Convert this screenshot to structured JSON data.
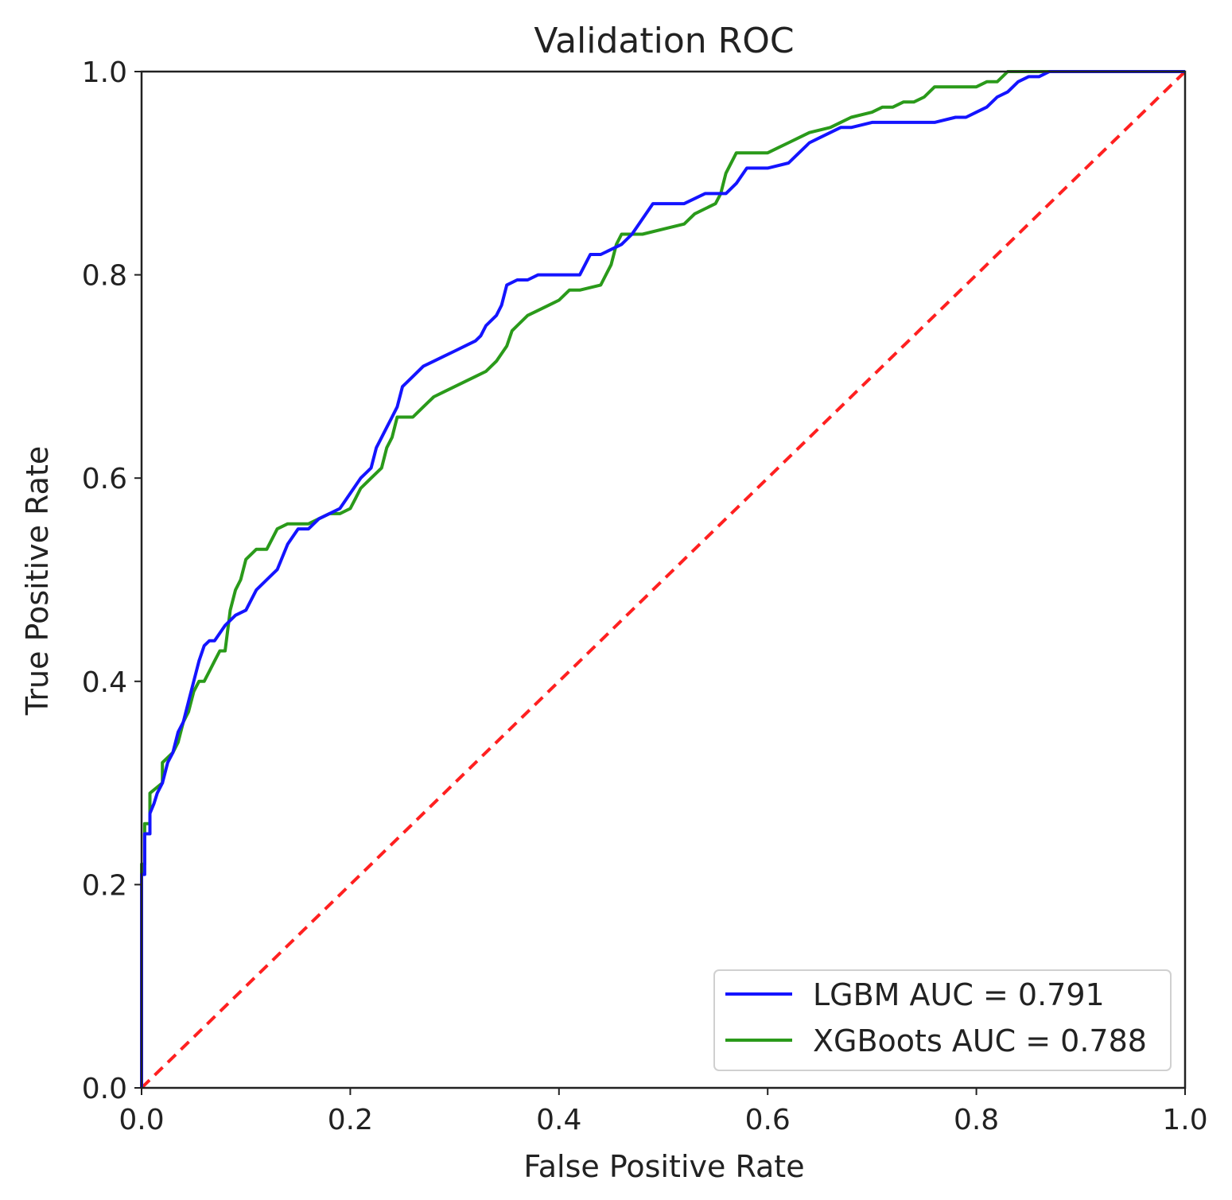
{
  "chart_data": {
    "type": "line",
    "title": "Validation ROC",
    "xlabel": "False Positive Rate",
    "ylabel": "True Positive Rate",
    "xlim": [
      0,
      1
    ],
    "ylim": [
      0,
      1
    ],
    "xticks": [
      "0.0",
      "0.2",
      "0.4",
      "0.6",
      "0.8",
      "1.0"
    ],
    "yticks": [
      "0.0",
      "0.2",
      "0.4",
      "0.6",
      "0.8",
      "1.0"
    ],
    "grid": false,
    "legend_position": "lower-right",
    "series": [
      {
        "name": "LGBM AUC = 0.791",
        "color": "#1414ff",
        "style": "solid",
        "x": [
          0.0,
          0.0,
          0.003,
          0.003,
          0.008,
          0.008,
          0.012,
          0.015,
          0.02,
          0.025,
          0.03,
          0.035,
          0.04,
          0.045,
          0.05,
          0.055,
          0.06,
          0.065,
          0.07,
          0.08,
          0.09,
          0.1,
          0.11,
          0.12,
          0.13,
          0.14,
          0.15,
          0.16,
          0.17,
          0.18,
          0.19,
          0.2,
          0.21,
          0.215,
          0.22,
          0.225,
          0.23,
          0.235,
          0.24,
          0.245,
          0.25,
          0.26,
          0.27,
          0.28,
          0.29,
          0.3,
          0.31,
          0.32,
          0.325,
          0.33,
          0.34,
          0.345,
          0.35,
          0.36,
          0.37,
          0.38,
          0.4,
          0.42,
          0.425,
          0.43,
          0.44,
          0.45,
          0.46,
          0.47,
          0.48,
          0.49,
          0.5,
          0.52,
          0.54,
          0.56,
          0.57,
          0.58,
          0.6,
          0.62,
          0.63,
          0.64,
          0.65,
          0.66,
          0.67,
          0.68,
          0.7,
          0.72,
          0.74,
          0.76,
          0.78,
          0.79,
          0.8,
          0.81,
          0.82,
          0.83,
          0.84,
          0.85,
          0.86,
          0.87,
          0.88,
          0.9,
          0.93,
          1.0
        ],
        "y": [
          0.0,
          0.21,
          0.21,
          0.25,
          0.25,
          0.27,
          0.28,
          0.29,
          0.3,
          0.32,
          0.33,
          0.35,
          0.36,
          0.38,
          0.4,
          0.42,
          0.435,
          0.44,
          0.44,
          0.455,
          0.465,
          0.47,
          0.49,
          0.5,
          0.51,
          0.535,
          0.55,
          0.55,
          0.56,
          0.565,
          0.57,
          0.585,
          0.6,
          0.605,
          0.61,
          0.63,
          0.64,
          0.65,
          0.66,
          0.67,
          0.69,
          0.7,
          0.71,
          0.715,
          0.72,
          0.725,
          0.73,
          0.735,
          0.74,
          0.75,
          0.76,
          0.77,
          0.79,
          0.795,
          0.795,
          0.8,
          0.8,
          0.8,
          0.81,
          0.82,
          0.82,
          0.825,
          0.83,
          0.84,
          0.855,
          0.87,
          0.87,
          0.87,
          0.88,
          0.88,
          0.89,
          0.905,
          0.905,
          0.91,
          0.92,
          0.93,
          0.935,
          0.94,
          0.945,
          0.945,
          0.95,
          0.95,
          0.95,
          0.95,
          0.955,
          0.955,
          0.96,
          0.965,
          0.975,
          0.98,
          0.99,
          0.995,
          0.995,
          1.0,
          1.0,
          1.0,
          1.0,
          1.0
        ]
      },
      {
        "name": "XGBoots AUC = 0.788",
        "color": "#2a9a1a",
        "style": "solid",
        "x": [
          0.0,
          0.0,
          0.003,
          0.003,
          0.008,
          0.008,
          0.02,
          0.02,
          0.03,
          0.035,
          0.04,
          0.045,
          0.05,
          0.055,
          0.06,
          0.065,
          0.07,
          0.075,
          0.08,
          0.085,
          0.09,
          0.095,
          0.1,
          0.11,
          0.12,
          0.125,
          0.13,
          0.14,
          0.15,
          0.16,
          0.17,
          0.18,
          0.19,
          0.2,
          0.205,
          0.21,
          0.215,
          0.22,
          0.23,
          0.235,
          0.24,
          0.245,
          0.25,
          0.26,
          0.27,
          0.275,
          0.28,
          0.29,
          0.3,
          0.31,
          0.32,
          0.33,
          0.34,
          0.35,
          0.355,
          0.36,
          0.37,
          0.38,
          0.39,
          0.4,
          0.41,
          0.42,
          0.44,
          0.445,
          0.45,
          0.455,
          0.46,
          0.47,
          0.48,
          0.5,
          0.52,
          0.53,
          0.54,
          0.55,
          0.555,
          0.56,
          0.57,
          0.6,
          0.61,
          0.62,
          0.63,
          0.64,
          0.66,
          0.67,
          0.68,
          0.7,
          0.71,
          0.72,
          0.73,
          0.74,
          0.75,
          0.76,
          0.8,
          0.81,
          0.82,
          0.83,
          0.84,
          0.9,
          1.0
        ],
        "y": [
          0.0,
          0.22,
          0.22,
          0.26,
          0.26,
          0.29,
          0.3,
          0.32,
          0.33,
          0.34,
          0.36,
          0.37,
          0.39,
          0.4,
          0.4,
          0.41,
          0.42,
          0.43,
          0.43,
          0.47,
          0.49,
          0.5,
          0.52,
          0.53,
          0.53,
          0.54,
          0.55,
          0.555,
          0.555,
          0.555,
          0.56,
          0.565,
          0.565,
          0.57,
          0.58,
          0.59,
          0.595,
          0.6,
          0.61,
          0.63,
          0.64,
          0.66,
          0.66,
          0.66,
          0.67,
          0.675,
          0.68,
          0.685,
          0.69,
          0.695,
          0.7,
          0.705,
          0.715,
          0.73,
          0.745,
          0.75,
          0.76,
          0.765,
          0.77,
          0.775,
          0.785,
          0.785,
          0.79,
          0.8,
          0.81,
          0.83,
          0.84,
          0.84,
          0.84,
          0.845,
          0.85,
          0.86,
          0.865,
          0.87,
          0.88,
          0.9,
          0.92,
          0.92,
          0.925,
          0.93,
          0.935,
          0.94,
          0.945,
          0.95,
          0.955,
          0.96,
          0.965,
          0.965,
          0.97,
          0.97,
          0.975,
          0.985,
          0.985,
          0.99,
          0.99,
          1.0,
          1.0,
          1.0,
          1.0
        ]
      },
      {
        "name": "",
        "color": "#ff2020",
        "style": "dashed",
        "x": [
          0.0,
          1.0
        ],
        "y": [
          0.0,
          1.0
        ]
      }
    ]
  }
}
